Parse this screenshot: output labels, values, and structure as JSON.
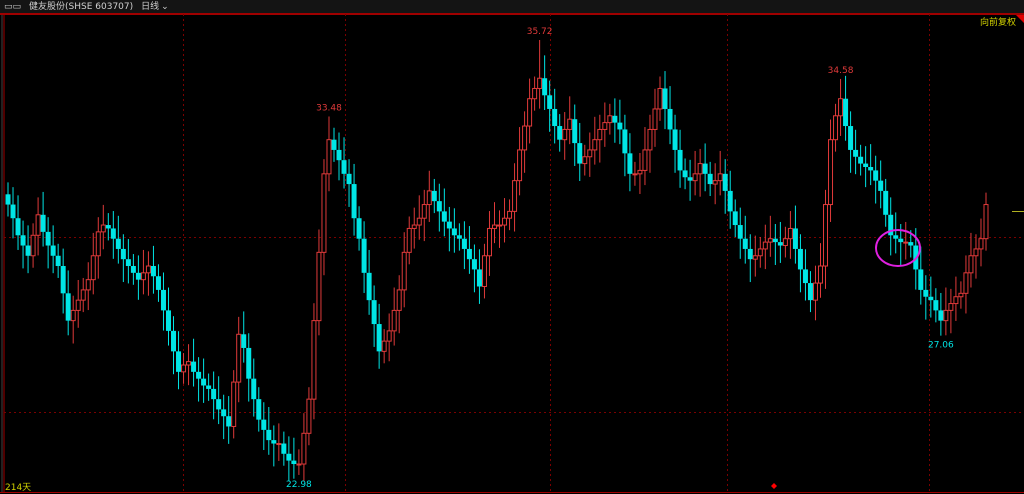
{
  "header": {
    "window_icon": "window-icon",
    "stock_name": "健友股份(SHSE 603707)",
    "period": "日线",
    "period_icon": "chevron-down-icon"
  },
  "adjust_label": "向前复权",
  "days_label": "214天",
  "colors": {
    "up": "#e03a3a",
    "down": "#00e6e6",
    "frame": "#a00000",
    "grid": "#7a0000",
    "label_yellow": "#d2d200",
    "highlight": "#e020e0"
  },
  "chart_data": {
    "type": "candlestick",
    "title": "",
    "ylim": [
      22.4,
      36.5
    ],
    "grid": true,
    "annotations": [
      {
        "text": "35.72",
        "index": 106,
        "kind": "high",
        "value": 35.72
      },
      {
        "text": "33.48",
        "index": 64,
        "kind": "high",
        "value": 33.48
      },
      {
        "text": "34.58",
        "index": 166,
        "kind": "high",
        "value": 34.58
      },
      {
        "text": "22.98",
        "index": 58,
        "kind": "low",
        "value": 22.98
      },
      {
        "text": "27.06",
        "index": 186,
        "kind": "low",
        "value": 27.06
      }
    ],
    "close": [
      30.9,
      30.5,
      30.0,
      29.7,
      29.4,
      30.0,
      30.6,
      30.1,
      29.7,
      29.4,
      29.1,
      28.3,
      27.5,
      27.8,
      28.1,
      28.4,
      28.7,
      29.4,
      30.1,
      30.3,
      30.2,
      29.9,
      29.6,
      29.3,
      29.1,
      28.9,
      28.7,
      28.9,
      29.1,
      28.8,
      28.4,
      27.8,
      27.2,
      26.6,
      26.0,
      26.2,
      26.3,
      26.0,
      25.8,
      25.6,
      25.5,
      25.2,
      24.9,
      24.7,
      24.4,
      25.7,
      27.1,
      26.7,
      25.8,
      25.2,
      24.6,
      24.3,
      24.0,
      23.9,
      23.9,
      23.6,
      23.4,
      23.3,
      23.3,
      24.2,
      25.2,
      27.5,
      29.5,
      31.8,
      32.8,
      32.5,
      32.2,
      31.8,
      31.5,
      30.5,
      29.9,
      28.9,
      28.1,
      27.4,
      26.6,
      26.9,
      27.2,
      27.8,
      28.4,
      29.5,
      30.2,
      30.3,
      30.5,
      30.9,
      31.3,
      31.0,
      30.7,
      30.4,
      30.2,
      30.0,
      29.9,
      29.6,
      29.3,
      29.0,
      28.5,
      29.4,
      30.2,
      30.3,
      30.3,
      30.5,
      30.7,
      31.6,
      32.5,
      33.2,
      34.0,
      34.3,
      34.6,
      34.1,
      33.7,
      33.2,
      32.8,
      33.1,
      33.4,
      32.7,
      32.1,
      32.3,
      32.5,
      32.8,
      33.1,
      33.3,
      33.5,
      33.3,
      33.1,
      32.4,
      31.8,
      31.8,
      31.9,
      32.5,
      33.1,
      33.7,
      34.3,
      33.7,
      33.1,
      32.5,
      31.9,
      31.7,
      31.6,
      31.8,
      32.1,
      31.8,
      31.5,
      31.6,
      31.8,
      31.3,
      30.7,
      30.3,
      29.9,
      29.6,
      29.3,
      29.4,
      29.6,
      29.8,
      29.9,
      29.8,
      29.7,
      29.9,
      30.2,
      29.6,
      29.0,
      28.6,
      28.1,
      28.6,
      29.1,
      30.9,
      32.8,
      33.5,
      34.0,
      33.2,
      32.5,
      32.3,
      32.1,
      32.0,
      31.9,
      31.6,
      31.3,
      30.6,
      30.0,
      29.9,
      29.8,
      29.8,
      29.7,
      29.0,
      28.4,
      28.2,
      28.1,
      27.8,
      27.5,
      27.8,
      28.0,
      28.2,
      28.3,
      28.9,
      29.4,
      29.6,
      29.9,
      30.9
    ]
  }
}
